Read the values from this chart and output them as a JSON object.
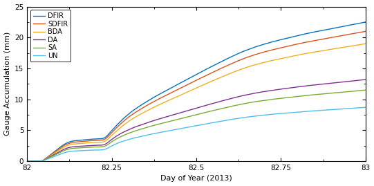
{
  "title": "",
  "xlabel": "Day of Year (2013)",
  "ylabel": "Gauge Accumulation (mm)",
  "xlim": [
    82.0,
    83.0
  ],
  "ylim": [
    0,
    25
  ],
  "xticks": [
    82.0,
    82.25,
    82.5,
    82.75,
    83.0
  ],
  "yticks": [
    0,
    5,
    10,
    15,
    20,
    25
  ],
  "colors": {
    "DFIR": "#0072bd",
    "SDFIR": "#d95319",
    "BDA": "#edb120",
    "DA": "#7e2f8e",
    "SA": "#77ac30",
    "UN": "#4dbeee"
  },
  "finals": {
    "DFIR": 22.5,
    "SDFIR": 21.0,
    "BDA": 19.0,
    "DA": 13.2,
    "SA": 11.5,
    "UN": 8.7
  },
  "legend_loc": "upper left",
  "fontsize": 8,
  "linewidth": 1.0,
  "bg_color": "#f0f0f0"
}
